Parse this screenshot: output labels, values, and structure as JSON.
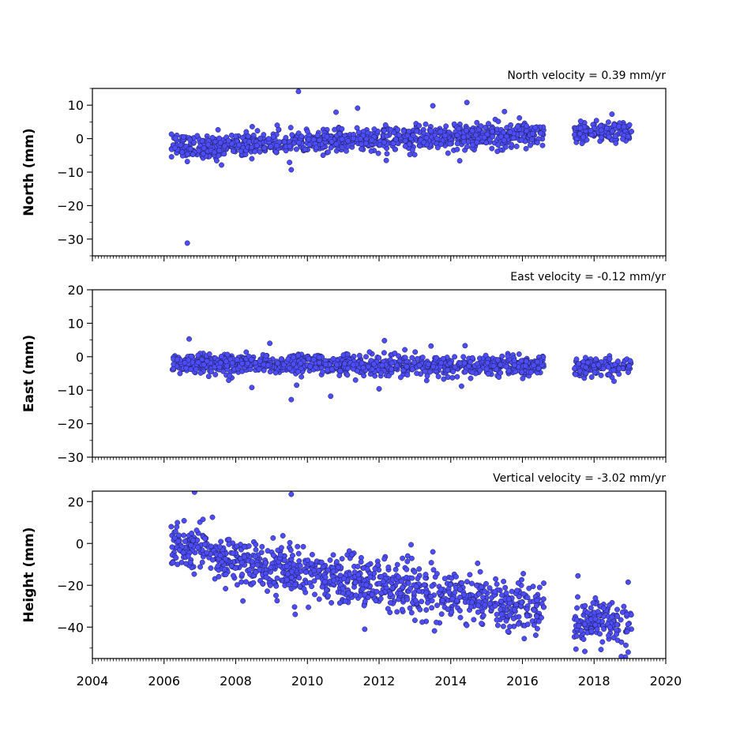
{
  "chart_data": [
    {
      "type": "scatter",
      "title": "North velocity = 0.39 mm/yr",
      "xlabel": "",
      "ylabel": "North (mm)",
      "xlim": [
        2004,
        2020
      ],
      "ylim": [
        -35,
        15
      ],
      "y_ticks": [
        10,
        0,
        -10,
        -20,
        -30
      ],
      "y_tick_labels": [
        "10",
        "0",
        "−10",
        "−20",
        "−30"
      ],
      "x_tick_labels": [],
      "marker_color": "#4d4dff",
      "edge_color": "#1a1a40",
      "grid": false,
      "series": [
        {
          "segments": [
            {
              "start": 2006.2,
              "end": 2007.5,
              "base": -2.5,
              "slope": 0.0,
              "spread": 1.8
            },
            {
              "start": 2007.5,
              "end": 2016.6,
              "base": -2.0,
              "slope": 0.39,
              "spread": 1.7
            },
            {
              "start": 2017.45,
              "end": 2019.05,
              "base": 1.8,
              "slope": 0.05,
              "spread": 1.6
            }
          ],
          "outliers": [
            [
              2006.65,
              -31.2
            ],
            [
              2009.75,
              14.1
            ],
            [
              2011.4,
              9.1
            ],
            [
              2013.5,
              9.8
            ],
            [
              2014.45,
              10.8
            ],
            [
              2015.5,
              8.1
            ],
            [
              2010.8,
              7.9
            ],
            [
              2009.55,
              -9.3
            ],
            [
              2014.25,
              -6.6
            ],
            [
              2012.2,
              -6.5
            ],
            [
              2008.45,
              -6.0
            ],
            [
              2009.5,
              -7.1
            ],
            [
              2018.5,
              7.3
            ],
            [
              2015.3,
              -3.8
            ]
          ]
        }
      ]
    },
    {
      "type": "scatter",
      "title": "East velocity = -0.12 mm/yr",
      "xlabel": "",
      "ylabel": "East (mm)",
      "xlim": [
        2004,
        2020
      ],
      "ylim": [
        -30,
        20
      ],
      "y_ticks": [
        20,
        10,
        0,
        -10,
        -20,
        -30
      ],
      "y_tick_labels": [
        "20",
        "10",
        "0",
        "−10",
        "−20",
        "−30"
      ],
      "x_tick_labels": [],
      "marker_color": "#4d4dff",
      "edge_color": "#1a1a40",
      "grid": false,
      "series": [
        {
          "segments": [
            {
              "start": 2006.2,
              "end": 2007.5,
              "base": -2.2,
              "slope": 0.0,
              "spread": 1.4
            },
            {
              "start": 2007.5,
              "end": 2016.6,
              "base": -2.0,
              "slope": -0.12,
              "spread": 1.5
            },
            {
              "start": 2017.45,
              "end": 2019.05,
              "base": -3.0,
              "slope": 0.0,
              "spread": 1.3
            }
          ],
          "outliers": [
            [
              2006.7,
              5.3
            ],
            [
              2009.55,
              -12.8
            ],
            [
              2010.65,
              -11.8
            ],
            [
              2008.45,
              -9.2
            ],
            [
              2009.7,
              -8.5
            ],
            [
              2012.0,
              -9.6
            ],
            [
              2012.15,
              4.8
            ],
            [
              2008.95,
              4.0
            ],
            [
              2013.45,
              3.2
            ],
            [
              2014.4,
              3.3
            ],
            [
              2014.3,
              -8.8
            ]
          ]
        }
      ]
    },
    {
      "type": "scatter",
      "title": "Vertical velocity = -3.02 mm/yr",
      "xlabel": "",
      "ylabel": "Height (mm)",
      "xlim": [
        2004,
        2020
      ],
      "ylim": [
        -55,
        25
      ],
      "y_ticks": [
        20,
        0,
        -20,
        -40
      ],
      "y_tick_labels": [
        "20",
        "0",
        "−20",
        "−40"
      ],
      "x_tick_labels": [
        "2004",
        "2006",
        "2008",
        "2010",
        "2012",
        "2014",
        "2016",
        "2018",
        "2020"
      ],
      "marker_color": "#4d4dff",
      "edge_color": "#1a1a40",
      "grid": false,
      "series": [
        {
          "segments": [
            {
              "start": 2006.2,
              "end": 2007.5,
              "base": 0.0,
              "slope": -3.0,
              "spread": 5.0
            },
            {
              "start": 2007.5,
              "end": 2016.6,
              "base": -8.0,
              "slope": -2.6,
              "spread": 6.0
            },
            {
              "start": 2017.45,
              "end": 2019.05,
              "base": -38.0,
              "slope": 0.5,
              "spread": 5.5
            }
          ],
          "outliers": [
            [
              2006.85,
              24.5
            ],
            [
              2009.55,
              23.5
            ],
            [
              2011.6,
              -41.0
            ],
            [
              2018.95,
              -52.0
            ],
            [
              2018.95,
              -18.5
            ],
            [
              2017.55,
              -15.5
            ],
            [
              2014.75,
              -9.5
            ],
            [
              2013.5,
              -4.0
            ],
            [
              2008.2,
              -27.5
            ],
            [
              2007.35,
              12.5
            ],
            [
              2006.2,
              8.0
            ],
            [
              2016.05,
              -45.5
            ]
          ]
        }
      ]
    }
  ]
}
